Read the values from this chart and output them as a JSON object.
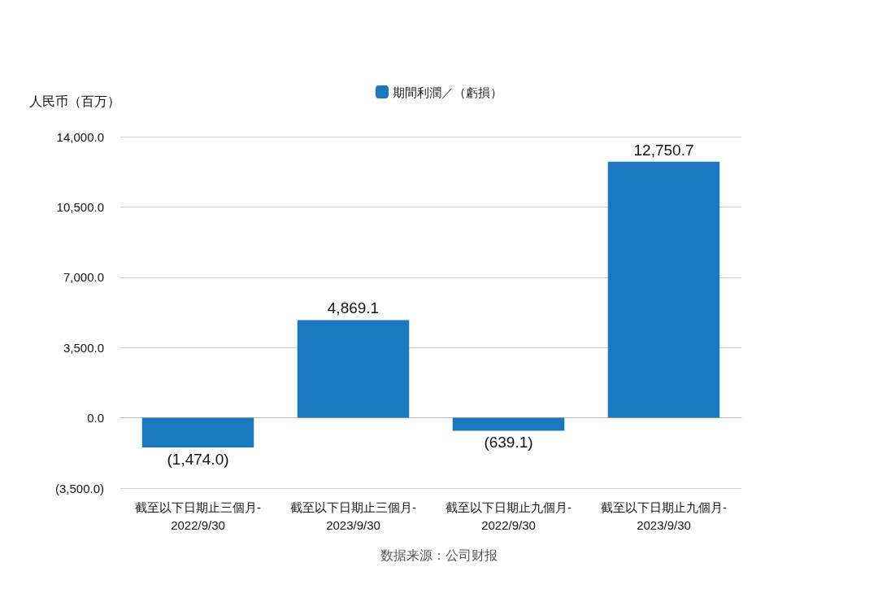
{
  "chart_data": {
    "type": "bar",
    "ylabel": "人民币（百万）",
    "annotations": [
      "数据来源：公司财报"
    ],
    "categories": [
      "截至以下日期止三個月-\n2022/9/30",
      "截至以下日期止三個月-\n2023/9/30",
      "截至以下日期止九個月-\n2022/9/30",
      "截至以下日期止九個月-\n2023/9/30"
    ],
    "series": [
      {
        "name": "期間利潤／（虧損）",
        "color": "#1a78bf",
        "values": [
          -1474.0,
          4869.1,
          -639.1,
          12750.7
        ],
        "value_labels": [
          "(1,474.0)",
          "4,869.1",
          "(639.1)",
          "12,750.7"
        ]
      }
    ],
    "ylim": [
      -3500,
      14000
    ],
    "yticks": [
      {
        "value": -3500,
        "label": "(3,500.0)"
      },
      {
        "value": 0,
        "label": "0.0"
      },
      {
        "value": 3500,
        "label": "3,500.0"
      },
      {
        "value": 7000,
        "label": "7,000.0"
      },
      {
        "value": 10500,
        "label": "10,500.0"
      },
      {
        "value": 14000,
        "label": "14,000.0"
      }
    ],
    "grid": "y",
    "legend": "top"
  }
}
